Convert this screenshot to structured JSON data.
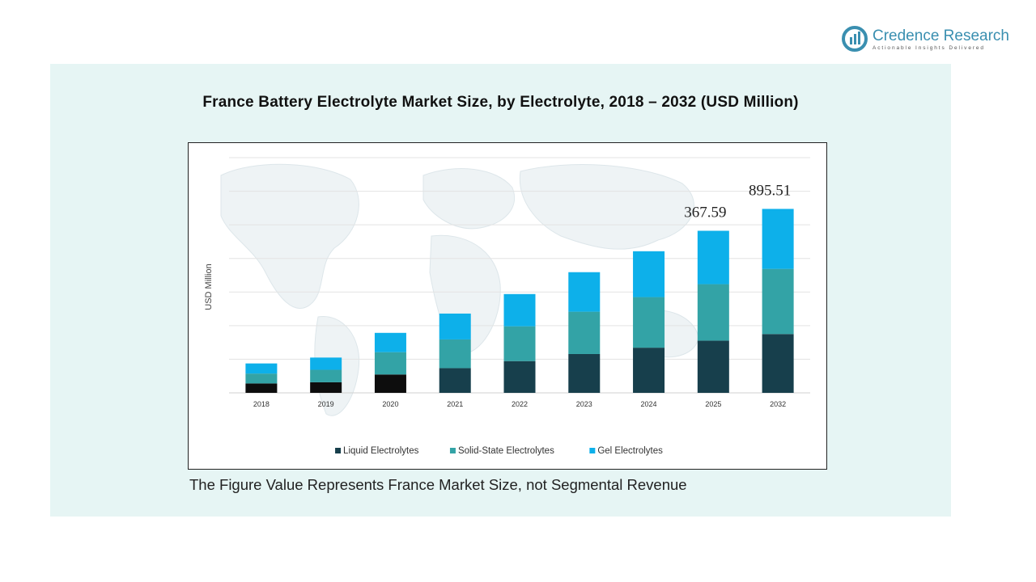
{
  "brand": {
    "name": "Credence Research",
    "tagline": "Actionable Insights Delivered",
    "logo_icon": "credence-logo-icon",
    "color": "#3a8fb0"
  },
  "footnote": "The Figure Value Represents France Market Size, not Segmental Revenue",
  "chart_data": {
    "type": "bar",
    "stacked": true,
    "title": "France Battery Electrolyte Market Size, by Electrolyte, 2018 – 2032 (USD Million)",
    "ylabel": "USD Million",
    "xlabel": "",
    "categories": [
      "2018",
      "2019",
      "2020",
      "2021",
      "2022",
      "2023",
      "2024",
      "2025",
      "2032"
    ],
    "ylim": [
      0,
      1000
    ],
    "grid": true,
    "legend": "bottom",
    "series": [
      {
        "name": "Liquid Electrolytes",
        "color": "#173f4c",
        "colors_by_category": [
          "#0d0d0d",
          "#0d0d0d",
          "#0d0d0d",
          "#173f4c",
          "#173f4c",
          "#173f4c",
          "#173f4c",
          "#173f4c",
          "#173f4c"
        ],
        "values": [
          40,
          45,
          78,
          105,
          135,
          165,
          192,
          222,
          250
        ]
      },
      {
        "name": "Solid-State Electrolytes",
        "color": "#33a3a6",
        "values": [
          42,
          53,
          95,
          122,
          148,
          180,
          215,
          240,
          277
        ]
      },
      {
        "name": "Gel Electrolytes",
        "color": "#0db0ea",
        "values": [
          43,
          52,
          82,
          110,
          137,
          168,
          195,
          227,
          255
        ]
      }
    ],
    "annotations": [
      {
        "category": "2025",
        "label": "367.59"
      },
      {
        "category": "2032",
        "label": "895.51"
      }
    ]
  }
}
